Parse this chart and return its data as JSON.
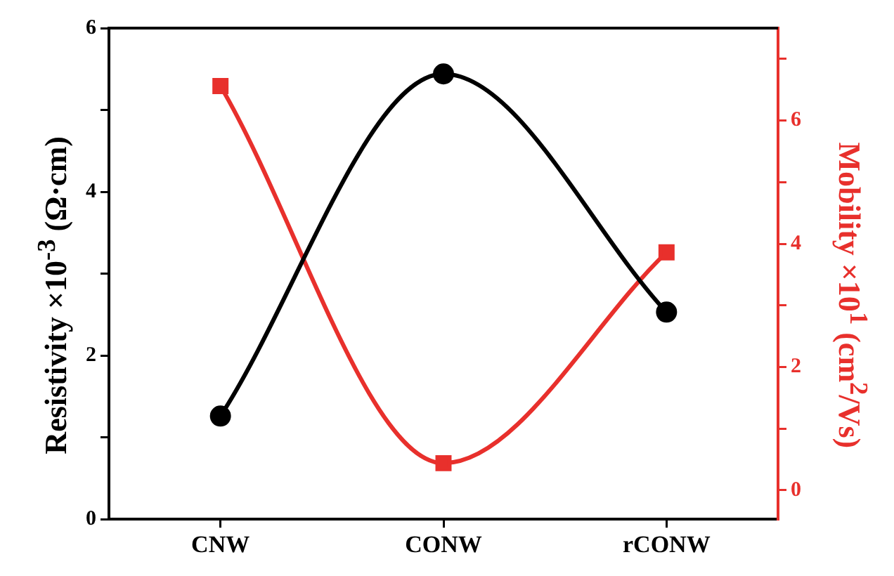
{
  "chart_data": {
    "type": "line",
    "categories": [
      "CNW",
      "CONW",
      "rCONW"
    ],
    "ylabel": "Resistivity ×10$^{-3}$ (Ω·cm)",
    "y2label": "Mobility ×10$^{1}$ (cm$^{2}$/Vs)",
    "ylim": [
      0,
      6
    ],
    "yticks": [
      0,
      {
        "value": 1,
        "label": null
      },
      2,
      {
        "value": 3,
        "label": null
      },
      4,
      {
        "value": 5,
        "label": null
      },
      6
    ],
    "y2lim": [
      -0.47,
      7.5
    ],
    "y2ticks": [
      0,
      {
        "value": 1,
        "label": null
      },
      2,
      {
        "value": 3,
        "label": null
      },
      4,
      {
        "value": 5,
        "label": null
      },
      6,
      {
        "value": 7,
        "label": null
      }
    ],
    "series": [
      {
        "color": "#000000",
        "marker": "circle",
        "values": [
          1.26,
          5.44,
          2.53
        ]
      },
      {
        "color": "#e8302c",
        "marker": "square",
        "axis": "y2",
        "values": [
          6.56,
          0.44,
          3.86
        ]
      }
    ],
    "grid": false,
    "legend": false
  }
}
